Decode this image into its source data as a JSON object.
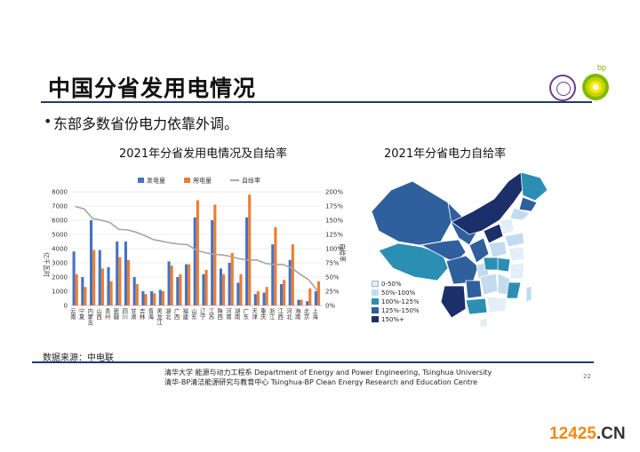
{
  "slide": {
    "title": "中国分省发用电情况",
    "bullet": "东部多数省份电力依靠外调。",
    "source": "数据来源：中电联",
    "footer_line1": "清华大学 能源与动力工程系 Department of Energy and Power Engineering, Tsinghua University",
    "footer_line2": "清华-BP清洁能源研究与教育中心 Tsinghua-BP Clean Energy Research and Education Centre",
    "page_number": "22",
    "bp_label": "bp",
    "watermark": "12425",
    "watermark_suffix": ".CN"
  },
  "chart_data": [
    {
      "type": "bar",
      "title": "2021年分省发用电情况及自给率",
      "ylabel": "亿千瓦时",
      "y2label": "自给率",
      "ylim": [
        0,
        8000
      ],
      "y2lim": [
        0,
        2.0
      ],
      "yticks": [
        "0",
        "1000",
        "2000",
        "3000",
        "4000",
        "5000",
        "6000",
        "7000",
        "8000"
      ],
      "y2ticks": [
        "0%",
        "25%",
        "50%",
        "75%",
        "100%",
        "125%",
        "150%",
        "175%",
        "200%"
      ],
      "grid": true,
      "legend_position": "top",
      "categories": [
        "云南",
        "宁夏",
        "内蒙古",
        "山西",
        "贵州",
        "新疆",
        "四川",
        "甘肃",
        "吉林",
        "青海",
        "黑龙江",
        "湖北",
        "广西",
        "福建",
        "山东",
        "辽宁",
        "江苏",
        "陕西",
        "河南",
        "湖南",
        "广东",
        "天津",
        "重庆",
        "浙江",
        "江西",
        "河北",
        "海南",
        "北京",
        "上海"
      ],
      "series": [
        {
          "name": "发电量",
          "color": "#4472c4",
          "values": [
            3800,
            2000,
            6000,
            3900,
            2700,
            4500,
            4500,
            2000,
            1000,
            1000,
            1100,
            3100,
            2000,
            2900,
            6200,
            2200,
            6000,
            2600,
            3000,
            1600,
            6200,
            800,
            900,
            4300,
            1500,
            3200,
            400,
            300,
            1000
          ]
        },
        {
          "name": "用电量",
          "color": "#ed7d31",
          "values": [
            2200,
            1300,
            3900,
            2600,
            1700,
            3400,
            3200,
            1500,
            800,
            860,
            1000,
            2800,
            2200,
            2900,
            7400,
            2500,
            7100,
            2200,
            3700,
            2200,
            7800,
            1000,
            1300,
            5500,
            1800,
            4300,
            400,
            1200,
            1700
          ]
        },
        {
          "name": "自给率",
          "color": "#a5a5a5",
          "values": [
            1.74,
            1.7,
            1.53,
            1.5,
            1.46,
            1.34,
            1.33,
            1.29,
            1.23,
            1.16,
            1.13,
            1.1,
            1.08,
            1.07,
            0.97,
            0.93,
            0.9,
            0.89,
            0.86,
            0.82,
            0.8,
            0.8,
            0.74,
            0.72,
            0.72,
            0.66,
            0.55,
            0.45,
            0.26
          ]
        }
      ]
    },
    {
      "type": "map",
      "title": "2021年分省电力自给率",
      "legend": [
        {
          "label": "0-50%",
          "color": "#e3eef6"
        },
        {
          "label": "50%-100%",
          "color": "#c2dcee"
        },
        {
          "label": "100%-125%",
          "color": "#2b8fb3"
        },
        {
          "label": "125%-150%",
          "color": "#2f5f9c"
        },
        {
          "label": "150%+",
          "color": "#1b2f6a"
        }
      ]
    }
  ]
}
